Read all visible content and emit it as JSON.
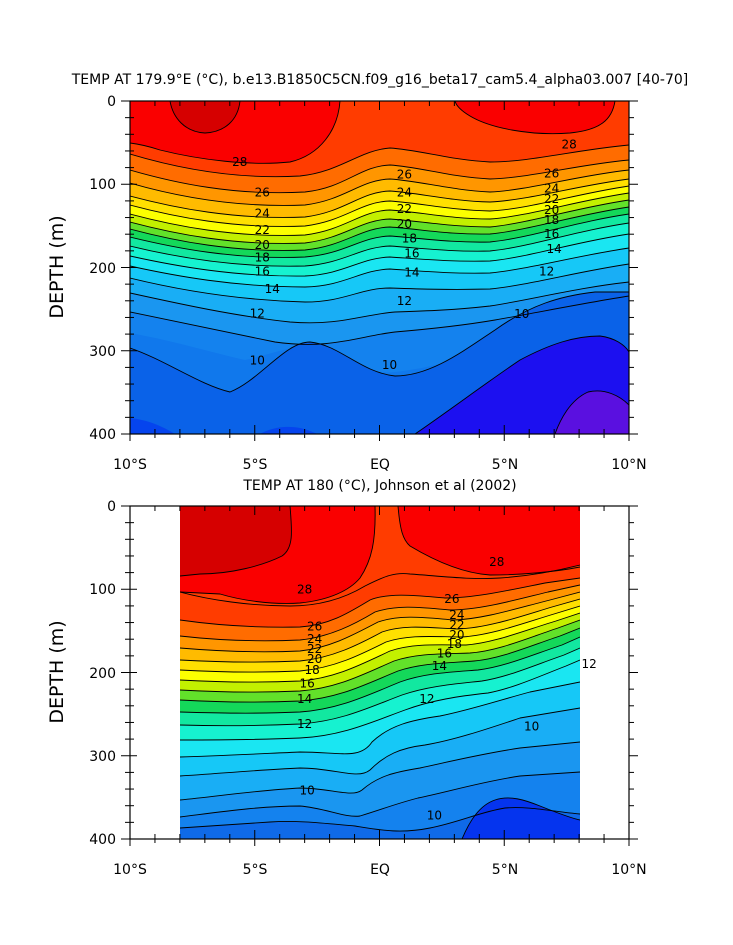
{
  "chart_data": [
    {
      "type": "heatmap",
      "title": "TEMP AT 179.9°E (°C), b.e13.B1850C5CN.f09_g16_beta17_cam5.4_alpha03.007 [40-70]",
      "ylabel": "DEPTH (m)",
      "xlabel": "",
      "xlim": [
        -10,
        10
      ],
      "ylim": [
        400,
        0
      ],
      "y_inverted": true,
      "x_ticks": [
        -10,
        -5,
        0,
        5,
        10
      ],
      "x_tick_labels": [
        "10°S",
        "5°S",
        "EQ",
        "5°N",
        "10°N"
      ],
      "y_ticks": [
        0,
        100,
        200,
        300,
        400
      ],
      "y_tick_labels": [
        "0",
        "100",
        "200",
        "300",
        "400"
      ],
      "data_extent_x": [
        -10,
        10
      ],
      "contour_interval": 1,
      "contour_labels": [
        {
          "value": "28",
          "x": -5.6,
          "y": 73
        },
        {
          "value": "26",
          "x": -4.7,
          "y": 110
        },
        {
          "value": "24",
          "x": -4.7,
          "y": 135
        },
        {
          "value": "22",
          "x": -4.7,
          "y": 155
        },
        {
          "value": "20",
          "x": -4.7,
          "y": 173
        },
        {
          "value": "18",
          "x": -4.7,
          "y": 188
        },
        {
          "value": "16",
          "x": -4.7,
          "y": 205
        },
        {
          "value": "14",
          "x": -4.3,
          "y": 226
        },
        {
          "value": "12",
          "x": -4.9,
          "y": 255
        },
        {
          "value": "10",
          "x": -4.9,
          "y": 312
        },
        {
          "value": "26",
          "x": 1.0,
          "y": 88
        },
        {
          "value": "24",
          "x": 1.0,
          "y": 110
        },
        {
          "value": "22",
          "x": 1.0,
          "y": 130
        },
        {
          "value": "20",
          "x": 1.0,
          "y": 148
        },
        {
          "value": "18",
          "x": 1.2,
          "y": 165
        },
        {
          "value": "16",
          "x": 1.3,
          "y": 183
        },
        {
          "value": "14",
          "x": 1.3,
          "y": 206
        },
        {
          "value": "12",
          "x": 1.0,
          "y": 240
        },
        {
          "value": "10",
          "x": 0.4,
          "y": 317
        },
        {
          "value": "28",
          "x": 7.6,
          "y": 52
        },
        {
          "value": "26",
          "x": 6.9,
          "y": 87
        },
        {
          "value": "24",
          "x": 6.9,
          "y": 105
        },
        {
          "value": "22",
          "x": 6.9,
          "y": 118
        },
        {
          "value": "20",
          "x": 6.9,
          "y": 131
        },
        {
          "value": "18",
          "x": 6.9,
          "y": 143
        },
        {
          "value": "16",
          "x": 6.9,
          "y": 160
        },
        {
          "value": "14",
          "x": 7.0,
          "y": 178
        },
        {
          "value": "12",
          "x": 6.7,
          "y": 205
        },
        {
          "value": "10",
          "x": 5.7,
          "y": 256
        }
      ]
    },
    {
      "type": "heatmap",
      "title": "TEMP AT 180 (°C), Johnson et al (2002)",
      "ylabel": "DEPTH (m)",
      "xlabel": "",
      "xlim": [
        -10,
        10
      ],
      "ylim": [
        400,
        0
      ],
      "y_inverted": true,
      "x_ticks": [
        -10,
        -5,
        0,
        5,
        10
      ],
      "x_tick_labels": [
        "10°S",
        "5°S",
        "EQ",
        "5°N",
        "10°N"
      ],
      "y_ticks": [
        0,
        100,
        200,
        300,
        400
      ],
      "y_tick_labels": [
        "0",
        "100",
        "200",
        "300",
        "400"
      ],
      "data_extent_x": [
        -8,
        8
      ],
      "contour_interval": 1,
      "contour_labels": [
        {
          "value": "28",
          "x": -3.0,
          "y": 100
        },
        {
          "value": "26",
          "x": -2.6,
          "y": 145
        },
        {
          "value": "24",
          "x": -2.6,
          "y": 160
        },
        {
          "value": "22",
          "x": -2.6,
          "y": 172
        },
        {
          "value": "20",
          "x": -2.6,
          "y": 184
        },
        {
          "value": "18",
          "x": -2.7,
          "y": 197
        },
        {
          "value": "16",
          "x": -2.9,
          "y": 213
        },
        {
          "value": "14",
          "x": -3.0,
          "y": 232
        },
        {
          "value": "12",
          "x": -3.0,
          "y": 262
        },
        {
          "value": "10",
          "x": -2.9,
          "y": 342
        },
        {
          "value": "26",
          "x": 2.9,
          "y": 112
        },
        {
          "value": "24",
          "x": 3.1,
          "y": 131
        },
        {
          "value": "22",
          "x": 3.1,
          "y": 143
        },
        {
          "value": "20",
          "x": 3.1,
          "y": 155
        },
        {
          "value": "18",
          "x": 3.0,
          "y": 166
        },
        {
          "value": "16",
          "x": 2.6,
          "y": 177
        },
        {
          "value": "14",
          "x": 2.4,
          "y": 192
        },
        {
          "value": "12",
          "x": 1.9,
          "y": 232
        },
        {
          "value": "10",
          "x": 2.2,
          "y": 372
        },
        {
          "value": "28",
          "x": 4.7,
          "y": 67
        },
        {
          "value": "12",
          "x": 8.4,
          "y": 190
        },
        {
          "value": "10",
          "x": 6.1,
          "y": 265
        }
      ]
    }
  ],
  "colors": {
    "t29": "#d60000",
    "t28": "#fa0000",
    "t27": "#ff3c00",
    "t26": "#ff6c00",
    "t25": "#ff9600",
    "t24": "#ffbb00",
    "t23": "#ffe000",
    "t22": "#fcff00",
    "t21": "#c3f000",
    "t20": "#62e12a",
    "t19": "#14d85a",
    "t18": "#12e8a0",
    "t17": "#16f2d0",
    "t16": "#1ae6f2",
    "t15": "#16c8f7",
    "t14": "#19aef5",
    "t13": "#1a96f0",
    "t12": "#1482ee",
    "t11": "#0f6ae8",
    "t10": "#0a55e8",
    "t9": "#0534ee",
    "t8": "#1c10f0",
    "t7": "#5a10e0"
  }
}
